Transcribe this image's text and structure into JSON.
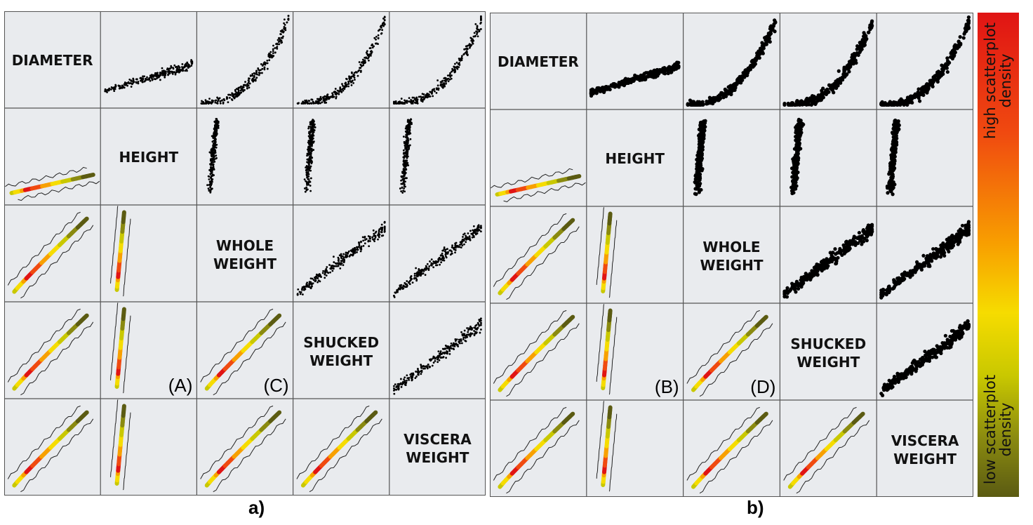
{
  "variables": [
    [
      "DIAMETER"
    ],
    [
      "HEIGHT"
    ],
    [
      "WHOLE",
      "WEIGHT"
    ],
    [
      "SHUCKED",
      "WEIGHT"
    ],
    [
      "VISCERA",
      "WEIGHT"
    ]
  ],
  "panels": [
    {
      "id": "a",
      "label": "a)",
      "letters": [
        "(A)",
        "(C)"
      ]
    },
    {
      "id": "b",
      "label": "b)",
      "letters": [
        "(B)",
        "(D)"
      ]
    }
  ],
  "colorbar": {
    "high_label_lines": [
      "high scatterplot",
      "density"
    ],
    "low_label_lines": [
      "low scatterplot",
      "density"
    ],
    "colors": [
      "#e01414",
      "#f04a10",
      "#f8a000",
      "#f6dc00",
      "#c9c800",
      "#8a8a10",
      "#5b5b12"
    ]
  },
  "chart_data": {
    "type": "scatter",
    "layout": "scatterplot-matrix",
    "variables": [
      "DIAMETER",
      "HEIGHT",
      "WHOLE WEIGHT",
      "SHUCKED WEIGHT",
      "VISCERA WEIGHT"
    ],
    "upper_triangle": "scatterplot points",
    "lower_triangle": "density-colored trend curve with contour",
    "annotations": [
      "(A)",
      "(B)",
      "(C)",
      "(D)"
    ],
    "panel_labels": [
      "a)",
      "b)"
    ]
  }
}
